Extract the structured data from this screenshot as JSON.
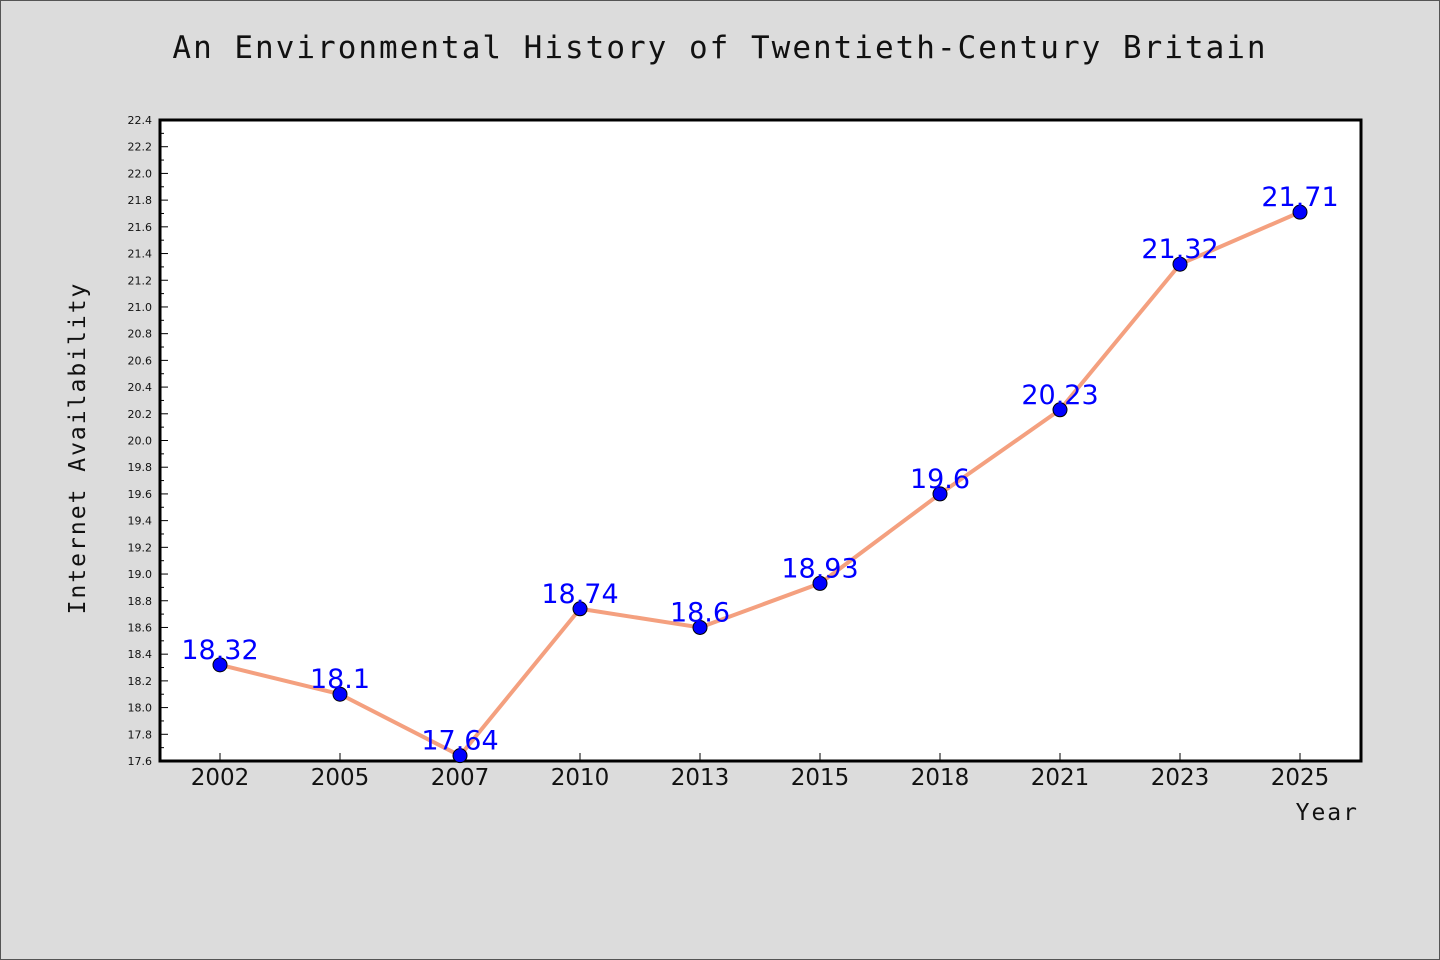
{
  "chart_data": {
    "type": "line",
    "title": "An Environmental History of Twentieth-Century Britain",
    "xlabel": "Year",
    "ylabel": "Internet Availability",
    "categories": [
      "2002",
      "2005",
      "2007",
      "2010",
      "2013",
      "2015",
      "2018",
      "2021",
      "2023",
      "2025"
    ],
    "series": [
      {
        "values": [
          18.32,
          18.1,
          17.64,
          18.74,
          18.6,
          18.93,
          19.6,
          20.23,
          21.32,
          21.71
        ],
        "labels": [
          "18.32",
          "18.1",
          "17.64",
          "18.74",
          "18.6",
          "18.93",
          "19.6",
          "20.23",
          "21.32",
          "21.71"
        ],
        "line_color": "#f4a07f",
        "marker_color": "#0000ff"
      }
    ],
    "ylim": [
      17.6,
      22.4
    ],
    "yticks": [
      "17.6",
      "17.8",
      "18.0",
      "18.2",
      "18.4",
      "18.6",
      "18.8",
      "19.0",
      "19.2",
      "19.4",
      "19.6",
      "19.8",
      "20.0",
      "20.2",
      "20.4",
      "20.6",
      "20.8",
      "21.0",
      "21.2",
      "21.4",
      "21.6",
      "21.8",
      "22.0",
      "22.2",
      "22.4"
    ],
    "grid": false,
    "data_label_color": "#0000ff",
    "background": "#dcdcdc",
    "plot_background": "#ffffff"
  }
}
